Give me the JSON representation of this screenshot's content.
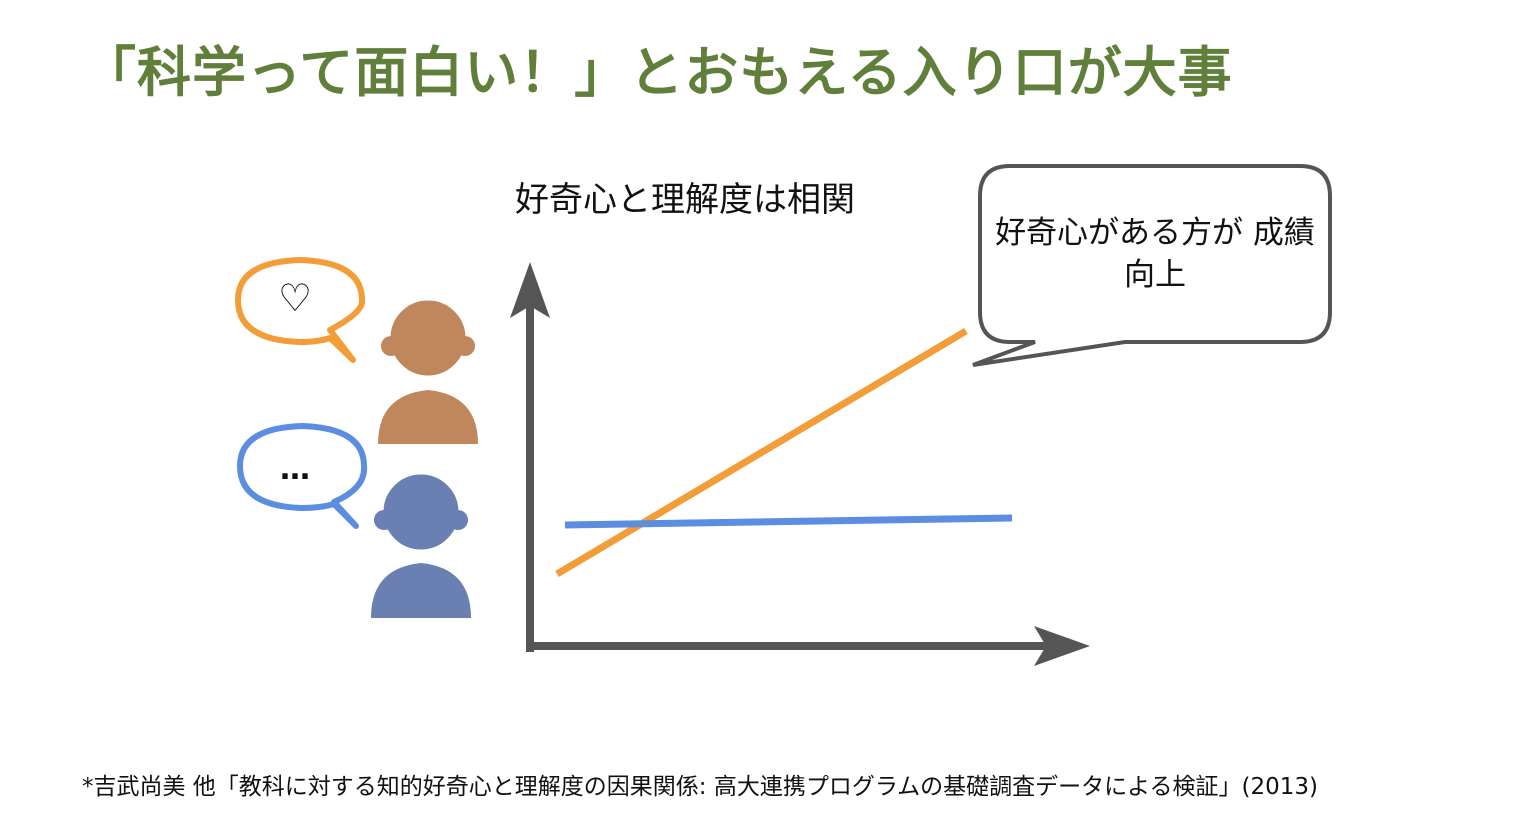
{
  "title": "「科学って面白い！」とおもえる入り口が大事",
  "diagram": {
    "chart_label": "好奇心と理解度は相関",
    "callout": "好奇心がある方が 成績向上",
    "curious_person_bubble": "♡",
    "uncurious_person_bubble": "…",
    "colors": {
      "title": "#5f7f3b",
      "curious": "#f29d38",
      "uncurious": "#5b8ee0",
      "curious_person": "#c0875d",
      "uncurious_person": "#6a80b2",
      "axis": "#555555"
    }
  },
  "citation": "*吉武尚美 他「教科に対する知的好奇心と理解度の因果関係: 高大連携プログラムの基礎調査データによる検証」(2013)"
}
